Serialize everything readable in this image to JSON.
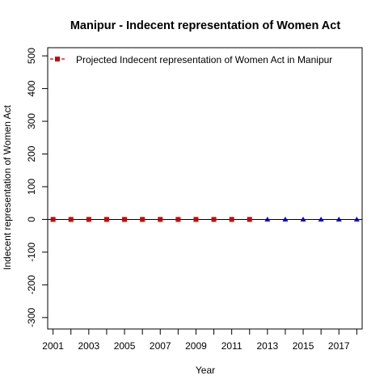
{
  "chart_data": {
    "type": "scatter",
    "title": "Manipur  -  Indecent representation of Women Act",
    "xlabel": "Year",
    "ylabel": "Indecent representation of Women Act",
    "xlim": [
      2000.7,
      2018.3
    ],
    "ylim": [
      -335,
      525
    ],
    "x_ticks": [
      2001,
      2003,
      2005,
      2007,
      2009,
      2011,
      2013,
      2015,
      2017
    ],
    "x_minor_ticks": [
      2002,
      2004,
      2006,
      2008,
      2010,
      2012,
      2014,
      2016,
      2018
    ],
    "y_ticks": [
      -300,
      -200,
      -100,
      0,
      100,
      200,
      300,
      400,
      500
    ],
    "reference_line": 0,
    "grid": false,
    "legend": {
      "position": "top-left",
      "entries": [
        {
          "label": "Projected  Indecent representation of Women Act  in  Manipur",
          "color": "#cc0000",
          "marker": "square",
          "line": "dashed"
        }
      ]
    },
    "series": [
      {
        "name": "Projected  Indecent representation of Women Act  in  Manipur",
        "color": "#cc0000",
        "marker": "square",
        "x": [
          2001,
          2002,
          2003,
          2004,
          2005,
          2006,
          2007,
          2008,
          2009,
          2010,
          2011,
          2012
        ],
        "y": [
          0,
          0,
          0,
          0,
          0,
          0,
          0,
          0,
          0,
          0,
          0,
          0
        ]
      },
      {
        "color": "#0000cc",
        "marker": "triangle",
        "x": [
          2013,
          2014,
          2015,
          2016,
          2017,
          2018
        ],
        "y": [
          0,
          0,
          0,
          0,
          0,
          0
        ]
      }
    ]
  }
}
